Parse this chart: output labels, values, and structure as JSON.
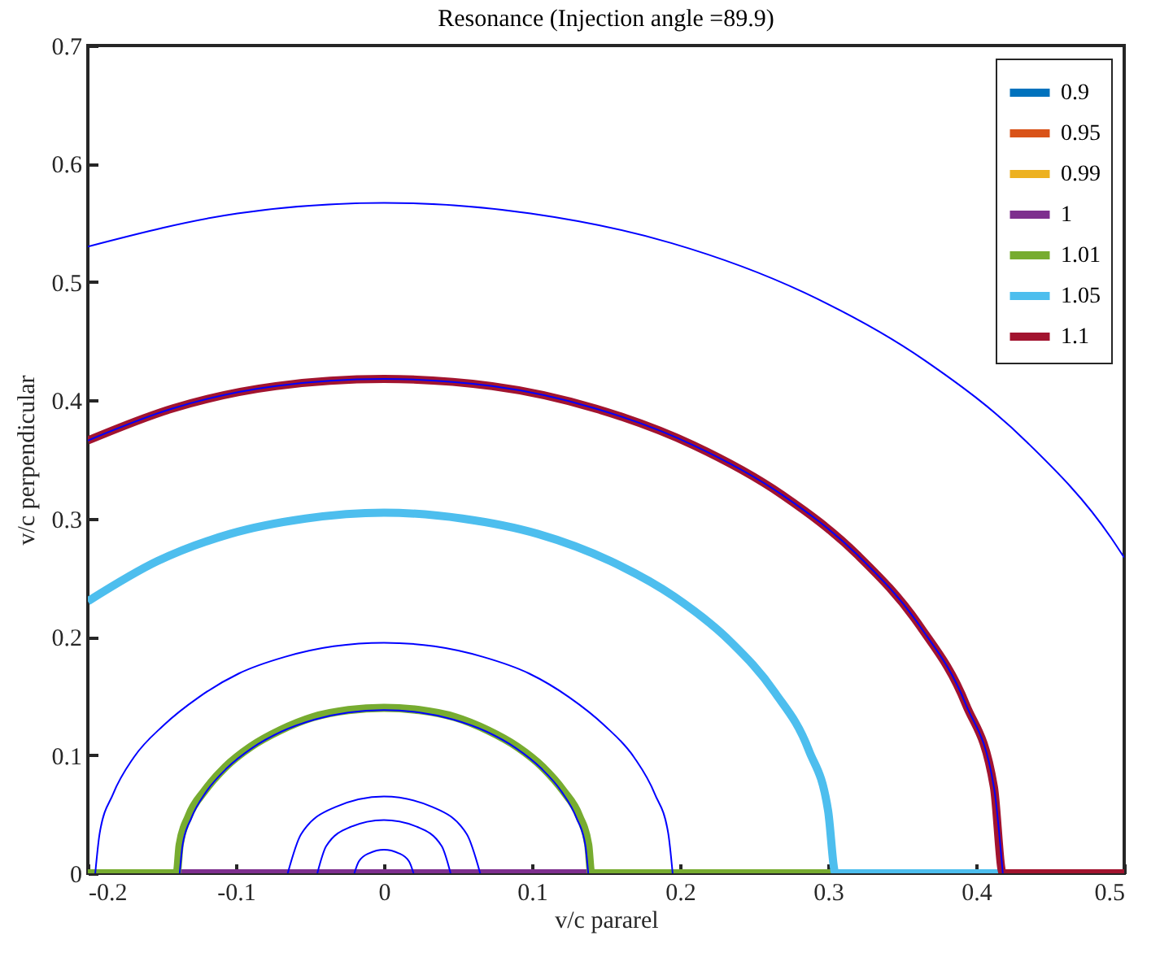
{
  "chart_data": {
    "type": "line",
    "title": "Resonance (Injection angle =89.9)",
    "xlabel": "v/c pararel",
    "ylabel": "v/c perpendicular",
    "xlim": [
      -0.2,
      0.5
    ],
    "xticks": [
      -0.2,
      -0.1,
      0,
      0.1,
      0.2,
      0.3,
      0.4,
      0.5
    ],
    "ylim": [
      0,
      0.7
    ],
    "yticks": [
      0,
      0.1,
      0.2,
      0.3,
      0.4,
      0.5,
      0.6,
      0.7
    ],
    "grid": false,
    "legend": "top right",
    "series": [
      {
        "name": "0.9",
        "color": "#0072bd"
      },
      {
        "name": "0.95",
        "color": "#d95319"
      },
      {
        "name": "0.99",
        "color": "#edb120"
      },
      {
        "name": "1",
        "color": "#7e2f8e",
        "x": [
          -0.14,
          0.14
        ],
        "values": [
          0,
          0
        ]
      },
      {
        "name": "1.01",
        "color": "#77ac30",
        "x": [
          -0.2,
          -0.14,
          -0.138,
          -0.132,
          -0.121,
          -0.107,
          -0.09,
          -0.07,
          -0.048,
          -0.024,
          0,
          0.024,
          0.048,
          0.07,
          0.09,
          0.107,
          0.121,
          0.132,
          0.138,
          0.14,
          0.305
        ],
        "values": [
          0,
          0,
          0.024,
          0.048,
          0.07,
          0.09,
          0.107,
          0.121,
          0.132,
          0.138,
          0.14,
          0.138,
          0.132,
          0.121,
          0.107,
          0.09,
          0.07,
          0.048,
          0.024,
          0,
          0
        ]
      },
      {
        "name": "1.05",
        "color": "#4dbeee",
        "x": [
          -0.2,
          -0.153,
          -0.104,
          -0.053,
          0,
          0.053,
          0.104,
          0.153,
          0.196,
          0.234,
          0.264,
          0.287,
          0.3,
          0.305,
          0.418
        ],
        "values": [
          0.23,
          0.264,
          0.287,
          0.3,
          0.305,
          0.3,
          0.287,
          0.264,
          0.234,
          0.196,
          0.153,
          0.104,
          0.053,
          0,
          0
        ]
      },
      {
        "name": "1.1",
        "color": "#a2142f",
        "x": [
          -0.2,
          -0.143,
          -0.073,
          0,
          0.073,
          0.143,
          0.209,
          0.269,
          0.32,
          0.362,
          0.393,
          0.412,
          0.418,
          0.5
        ],
        "values": [
          0.366,
          0.393,
          0.412,
          0.418,
          0.412,
          0.393,
          0.362,
          0.32,
          0.269,
          0.209,
          0.143,
          0.073,
          0,
          0
        ]
      },
      {
        "color": "#0000ff",
        "x": [
          -0.2,
          -0.099,
          0,
          0.099,
          0.194,
          0.284,
          0.365,
          0.434,
          0.491,
          0.5
        ],
        "values": [
          0.53,
          0.558,
          0.567,
          0.558,
          0.533,
          0.491,
          0.434,
          0.365,
          0.284,
          0.267
        ]
      },
      {
        "color": "#0000ff",
        "x": [
          -0.2,
          -0.143,
          -0.073,
          0,
          0.073,
          0.143,
          0.209,
          0.269,
          0.32,
          0.362,
          0.393,
          0.412,
          0.418
        ],
        "values": [
          0.366,
          0.393,
          0.412,
          0.418,
          0.412,
          0.393,
          0.362,
          0.32,
          0.269,
          0.209,
          0.143,
          0.073,
          0
        ]
      },
      {
        "color": "#0000ff",
        "x": [
          -0.195,
          -0.192,
          -0.183,
          -0.169,
          -0.149,
          -0.125,
          -0.098,
          -0.067,
          -0.034,
          0,
          0.034,
          0.067,
          0.098,
          0.125,
          0.149,
          0.169,
          0.183,
          0.192,
          0.195
        ],
        "values": [
          0,
          0.034,
          0.067,
          0.098,
          0.125,
          0.149,
          0.169,
          0.183,
          0.192,
          0.195,
          0.192,
          0.183,
          0.169,
          0.149,
          0.125,
          0.098,
          0.067,
          0.034,
          0
        ]
      },
      {
        "color": "#0000ff",
        "x": [
          -0.138,
          -0.136,
          -0.13,
          -0.12,
          -0.106,
          -0.089,
          -0.069,
          -0.047,
          -0.024,
          0,
          0.024,
          0.047,
          0.069,
          0.089,
          0.106,
          0.12,
          0.13,
          0.136,
          0.138
        ],
        "values": [
          0,
          0.024,
          0.047,
          0.069,
          0.089,
          0.106,
          0.12,
          0.13,
          0.136,
          0.138,
          0.136,
          0.13,
          0.12,
          0.106,
          0.089,
          0.069,
          0.047,
          0.024,
          0
        ]
      },
      {
        "color": "#0000ff",
        "x": [
          -0.065,
          -0.056,
          -0.033,
          0,
          0.033,
          0.056,
          0.065
        ],
        "values": [
          0,
          0.033,
          0.056,
          0.065,
          0.056,
          0.033,
          0
        ]
      },
      {
        "color": "#0000ff",
        "x": [
          -0.045,
          -0.039,
          -0.023,
          0,
          0.023,
          0.039,
          0.045
        ],
        "values": [
          0,
          0.023,
          0.039,
          0.045,
          0.039,
          0.023,
          0
        ]
      },
      {
        "color": "#0000ff",
        "x": [
          -0.02,
          -0.017,
          -0.01,
          0,
          0.01,
          0.017,
          0.02
        ],
        "values": [
          0,
          0.01,
          0.017,
          0.02,
          0.017,
          0.01,
          0
        ]
      }
    ]
  }
}
